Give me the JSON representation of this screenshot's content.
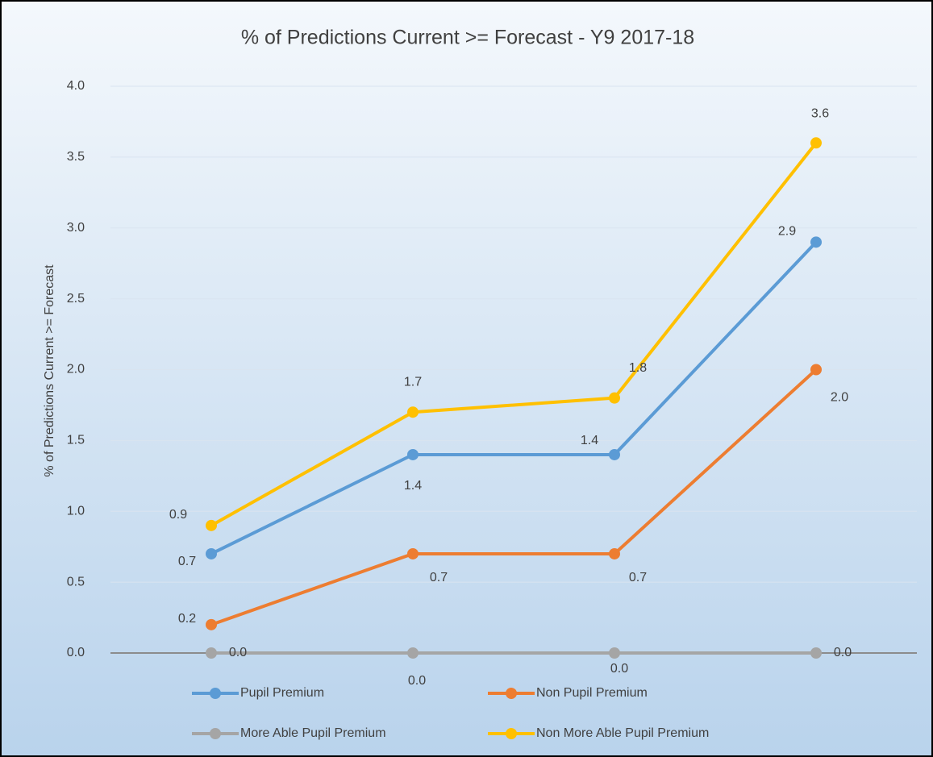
{
  "chart_data": {
    "type": "line",
    "title": "% of Predictions Current >= Forecast - Y9 2017-18",
    "y_label": "% of Predictions Current >= Forecast",
    "categories": [
      null,
      null,
      null,
      null
    ],
    "series": [
      {
        "name": "Pupil Premium",
        "color": "#5b9bd5",
        "values": [
          0.7,
          1.4,
          1.4,
          2.9
        ],
        "value_labels": [
          "0.7",
          "1.4",
          "1.4",
          "2.9"
        ]
      },
      {
        "name": "Non Pupil Premium",
        "color": "#ed7d31",
        "values": [
          0.2,
          0.7,
          0.7,
          2
        ],
        "value_labels": [
          "0.2",
          "0.7",
          "0.7",
          "2.0"
        ]
      },
      {
        "name": "More Able Pupil Premium",
        "color": "#a5a5a5",
        "values": [
          0,
          0,
          0,
          0
        ],
        "value_labels": [
          "0.0",
          "0.0",
          "0.0",
          "0.0"
        ]
      },
      {
        "name": "Non More Able Pupil Premium",
        "color": "#ffc000",
        "values": [
          0.9,
          1.7,
          1.8,
          3.6
        ],
        "value_labels": [
          "0.9",
          "1.7",
          "1.8",
          "3.6"
        ]
      }
    ],
    "ylim": [
      0,
      4
    ],
    "yticks": [
      {
        "value": 0,
        "label": "0.0"
      },
      0.5,
      {
        "value": 1,
        "label": "1.0"
      },
      1.5,
      {
        "value": 2,
        "label": "2.0"
      },
      2.5,
      {
        "value": 3,
        "label": "3.0"
      },
      3.5,
      {
        "value": 4,
        "label": "4.0"
      }
    ],
    "grid": true,
    "legend": "bottom"
  }
}
